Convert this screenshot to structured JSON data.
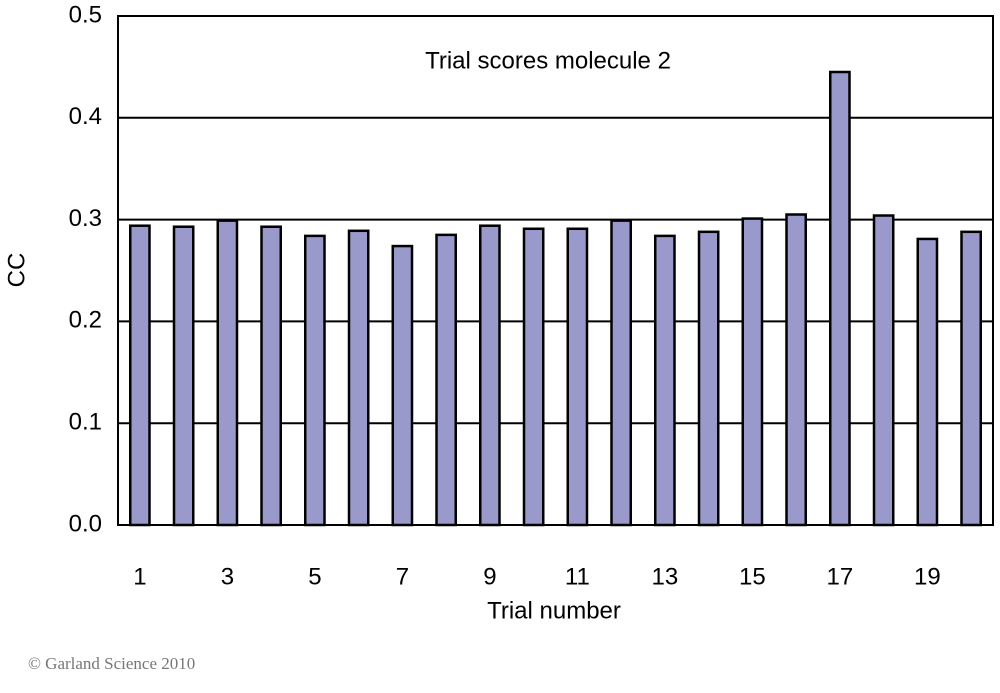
{
  "chart_data": {
    "type": "bar",
    "title": "Trial scores molecule 2",
    "x_label": "Trial number",
    "y_label": "CC",
    "categories": [
      "1",
      null,
      "3",
      null,
      "5",
      null,
      "7",
      null,
      "9",
      null,
      "11",
      null,
      "13",
      null,
      "15",
      null,
      "17",
      null,
      "19",
      null
    ],
    "values": [
      0.294,
      0.293,
      0.299,
      0.293,
      0.284,
      0.289,
      0.274,
      0.285,
      0.294,
      0.291,
      0.291,
      0.299,
      0.284,
      0.288,
      0.301,
      0.305,
      0.445,
      0.304,
      0.281,
      0.288
    ],
    "color": "#9999cc",
    "ylim": [
      0,
      0.5
    ],
    "yticks": [
      {
        "value": 0,
        "label": "0.0"
      },
      0.1,
      0.2,
      0.3,
      0.4,
      0.5
    ],
    "grid": true
  },
  "credit": "© Garland Science 2010"
}
